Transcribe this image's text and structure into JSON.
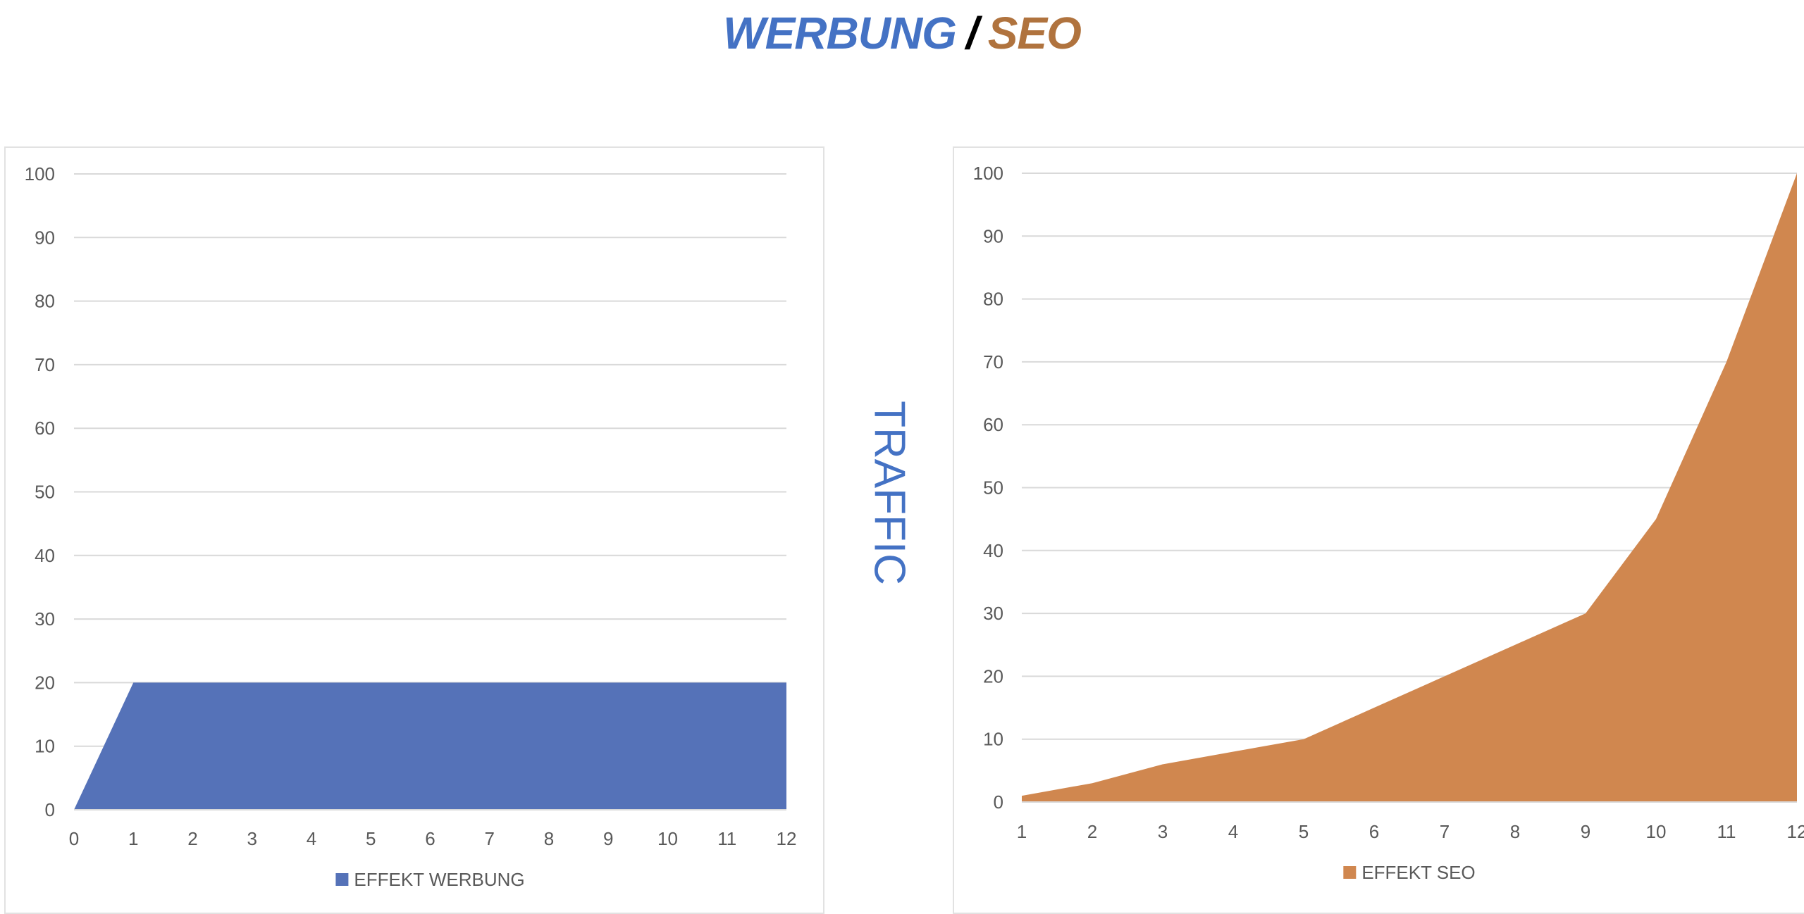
{
  "title": {
    "left": "WERBUNG",
    "separator": "/",
    "right": "SEO"
  },
  "side_label": "TRAFFIC",
  "colors": {
    "werbung": "#5572b8",
    "seo": "#d0874f",
    "grid": "#d9d9d9",
    "tick": "#595959"
  },
  "chart_data": [
    {
      "type": "area",
      "title": "",
      "xlabel": "",
      "ylabel": "",
      "x": [
        0,
        1,
        2,
        3,
        4,
        5,
        6,
        7,
        8,
        9,
        10,
        11,
        12
      ],
      "series": [
        {
          "name": "EFFEKT WERBUNG",
          "values": [
            0,
            20,
            20,
            20,
            20,
            20,
            20,
            20,
            20,
            20,
            20,
            20,
            20
          ]
        }
      ],
      "ylim": [
        0,
        100
      ],
      "yticks": [
        0,
        10,
        20,
        30,
        40,
        50,
        60,
        70,
        80,
        90,
        100
      ],
      "grid": true,
      "legend": "bottom-center"
    },
    {
      "type": "area",
      "title": "",
      "xlabel": "",
      "ylabel": "",
      "x": [
        1,
        2,
        3,
        4,
        5,
        6,
        7,
        8,
        9,
        10,
        11,
        12
      ],
      "series": [
        {
          "name": "EFFEKT SEO",
          "values": [
            1,
            3,
            6,
            8,
            10,
            15,
            20,
            25,
            30,
            45,
            70,
            100
          ]
        }
      ],
      "ylim": [
        0,
        100
      ],
      "yticks": [
        0,
        10,
        20,
        30,
        40,
        50,
        60,
        70,
        80,
        90,
        100
      ],
      "grid": true,
      "legend": "bottom-center"
    }
  ]
}
